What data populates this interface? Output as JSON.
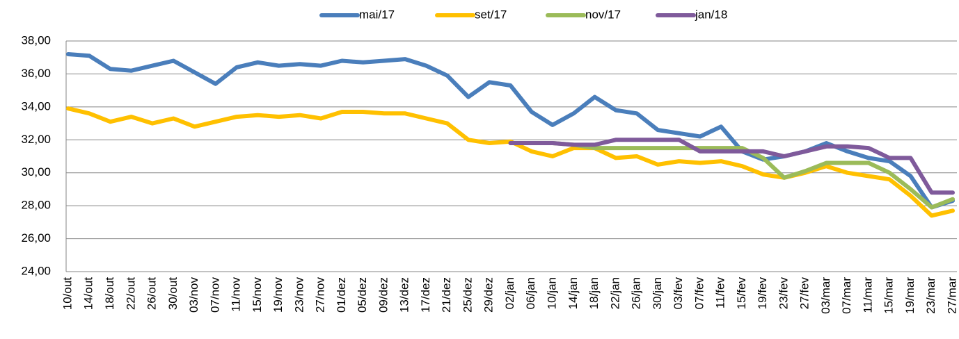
{
  "chart_data": {
    "type": "line",
    "categories": [
      "10/out",
      "14/out",
      "18/out",
      "22/out",
      "26/out",
      "30/out",
      "03/nov",
      "07/nov",
      "11/nov",
      "15/nov",
      "19/nov",
      "23/nov",
      "27/nov",
      "01/dez",
      "05/dez",
      "09/dez",
      "13/dez",
      "17/dez",
      "21/dez",
      "25/dez",
      "29/dez",
      "02/jan",
      "06/jan",
      "10/jan",
      "14/jan",
      "18/jan",
      "22/jan",
      "26/jan",
      "30/jan",
      "03/fev",
      "07/fev",
      "11/fev",
      "15/fev",
      "19/fev",
      "23/fev",
      "27/fev",
      "03/mar",
      "07/mar",
      "11/mar",
      "15/mar",
      "19/mar",
      "23/mar",
      "27/mar"
    ],
    "series": [
      {
        "name": "mai/17",
        "color": "#4a7ebb",
        "values": [
          37.2,
          37.1,
          36.3,
          36.2,
          36.5,
          36.8,
          36.1,
          35.4,
          36.4,
          36.7,
          36.5,
          36.6,
          36.5,
          36.8,
          36.7,
          36.8,
          36.9,
          36.5,
          35.9,
          34.6,
          35.5,
          35.3,
          33.7,
          32.9,
          33.6,
          34.6,
          33.8,
          33.6,
          32.6,
          32.4,
          32.2,
          32.8,
          31.3,
          30.8,
          31.0,
          31.3,
          31.8,
          31.3,
          30.9,
          30.7,
          29.8,
          27.9,
          28.3
        ]
      },
      {
        "name": "set/17",
        "color": "#ffc000",
        "values": [
          33.9,
          33.6,
          33.1,
          33.4,
          33.0,
          33.3,
          32.8,
          33.1,
          33.4,
          33.5,
          33.4,
          33.5,
          33.3,
          33.7,
          33.7,
          33.6,
          33.6,
          33.3,
          33.0,
          32.0,
          31.8,
          31.9,
          31.3,
          31.0,
          31.5,
          31.5,
          30.9,
          31.0,
          30.5,
          30.7,
          30.6,
          30.7,
          30.4,
          29.9,
          29.7,
          30.0,
          30.4,
          30.0,
          29.8,
          29.6,
          28.6,
          27.4,
          27.7
        ]
      },
      {
        "name": "nov/17",
        "color": "#9bbb59",
        "values": [
          null,
          null,
          null,
          null,
          null,
          null,
          null,
          null,
          null,
          null,
          null,
          null,
          null,
          null,
          null,
          null,
          null,
          null,
          null,
          null,
          null,
          31.8,
          31.8,
          31.8,
          31.7,
          31.5,
          31.5,
          31.5,
          31.5,
          31.5,
          31.5,
          31.5,
          31.5,
          30.9,
          29.7,
          30.1,
          30.6,
          30.6,
          30.6,
          30.0,
          29.0,
          27.9,
          28.4
        ]
      },
      {
        "name": "jan/18",
        "color": "#7f5a9b",
        "values": [
          null,
          null,
          null,
          null,
          null,
          null,
          null,
          null,
          null,
          null,
          null,
          null,
          null,
          null,
          null,
          null,
          null,
          null,
          null,
          null,
          null,
          31.8,
          31.8,
          31.8,
          31.7,
          31.7,
          32.0,
          32.0,
          32.0,
          32.0,
          31.3,
          31.3,
          31.3,
          31.3,
          31.0,
          31.3,
          31.6,
          31.6,
          31.5,
          30.9,
          30.9,
          28.8,
          28.8
        ]
      }
    ],
    "ylim": [
      24,
      38
    ],
    "yticks": [
      {
        "value": 24,
        "label": "24,00"
      },
      {
        "value": 26,
        "label": "26,00"
      },
      {
        "value": 28,
        "label": "28,00"
      },
      {
        "value": 30,
        "label": "30,00"
      },
      {
        "value": 32,
        "label": "32,00"
      },
      {
        "value": 34,
        "label": "34,00"
      },
      {
        "value": 36,
        "label": "36,00"
      },
      {
        "value": 38,
        "label": "38,00"
      }
    ],
    "grid": true,
    "legend": "top"
  }
}
